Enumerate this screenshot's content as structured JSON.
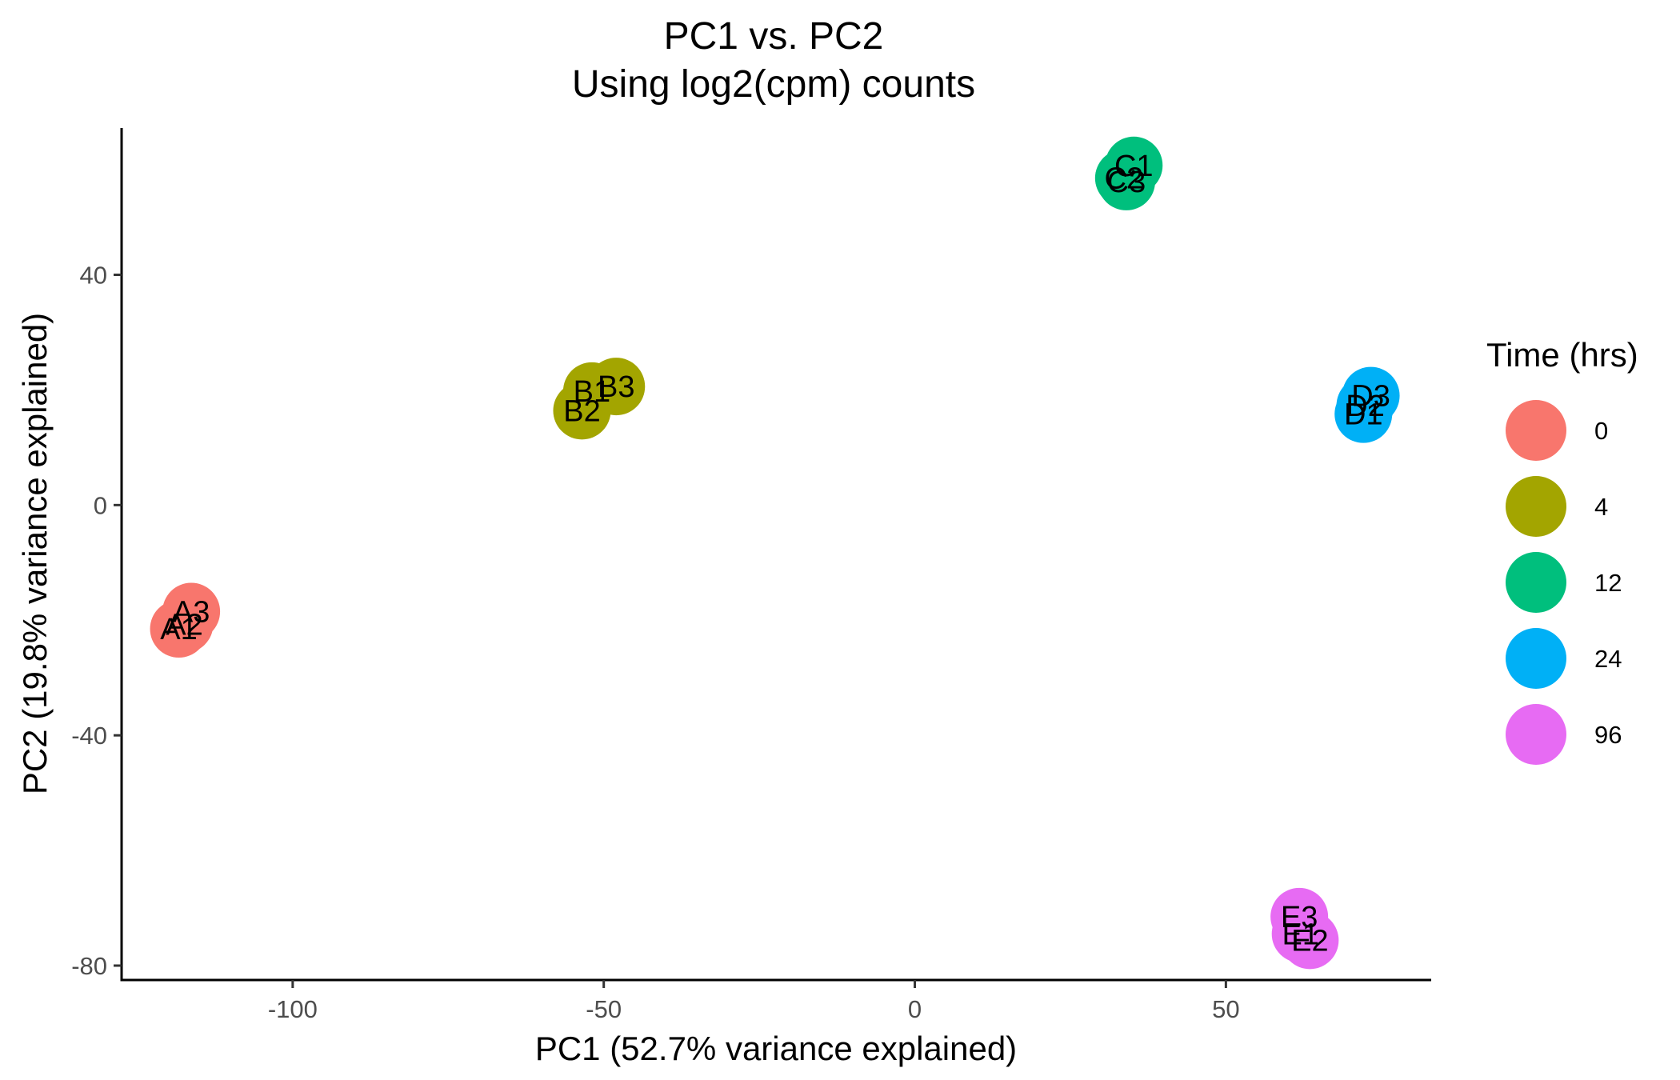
{
  "chart_data": {
    "type": "scatter",
    "title": "PC1 vs. PC2",
    "subtitle": "Using log2(cpm) counts",
    "xlabel": "PC1 (52.7% variance explained)",
    "ylabel": "PC2 (19.8% variance explained)",
    "xlim": [
      -127.5,
      83
    ],
    "ylim": [
      -82.5,
      65.5
    ],
    "xticks": [
      -100,
      -50,
      0,
      50
    ],
    "yticks": [
      -80,
      -40,
      0,
      40
    ],
    "grid": false,
    "legend": {
      "title": "Time (hrs)",
      "position": "right",
      "entries": [
        {
          "label": "0",
          "color": "#F8766D"
        },
        {
          "label": "4",
          "color": "#A3A500"
        },
        {
          "label": "12",
          "color": "#00BF7D"
        },
        {
          "label": "24",
          "color": "#00B0F6"
        },
        {
          "label": "96",
          "color": "#E76BF3"
        }
      ]
    },
    "points": [
      {
        "label": "A1",
        "group": "0",
        "x": -118.3,
        "y": -21.5
      },
      {
        "label": "A2",
        "group": "0",
        "x": -117.4,
        "y": -20.7
      },
      {
        "label": "A3",
        "group": "0",
        "x": -116.3,
        "y": -18.5
      },
      {
        "label": "B1",
        "group": "4",
        "x": -51.9,
        "y": 19.8
      },
      {
        "label": "B2",
        "group": "4",
        "x": -53.5,
        "y": 16.4
      },
      {
        "label": "B3",
        "group": "4",
        "x": -48.0,
        "y": 20.6
      },
      {
        "label": "C1",
        "group": "12",
        "x": 35.2,
        "y": 59.0
      },
      {
        "label": "C2",
        "group": "12",
        "x": 33.6,
        "y": 56.8
      },
      {
        "label": "C3",
        "group": "12",
        "x": 34.0,
        "y": 56.2
      },
      {
        "label": "D1",
        "group": "24",
        "x": 72.1,
        "y": 15.8
      },
      {
        "label": "D2",
        "group": "24",
        "x": 72.4,
        "y": 17.3
      },
      {
        "label": "D3",
        "group": "24",
        "x": 73.3,
        "y": 19.0
      },
      {
        "label": "E1",
        "group": "96",
        "x": 62.0,
        "y": -74.5
      },
      {
        "label": "E2",
        "group": "96",
        "x": 63.5,
        "y": -75.6
      },
      {
        "label": "E3",
        "group": "96",
        "x": 61.8,
        "y": -71.5
      }
    ]
  }
}
